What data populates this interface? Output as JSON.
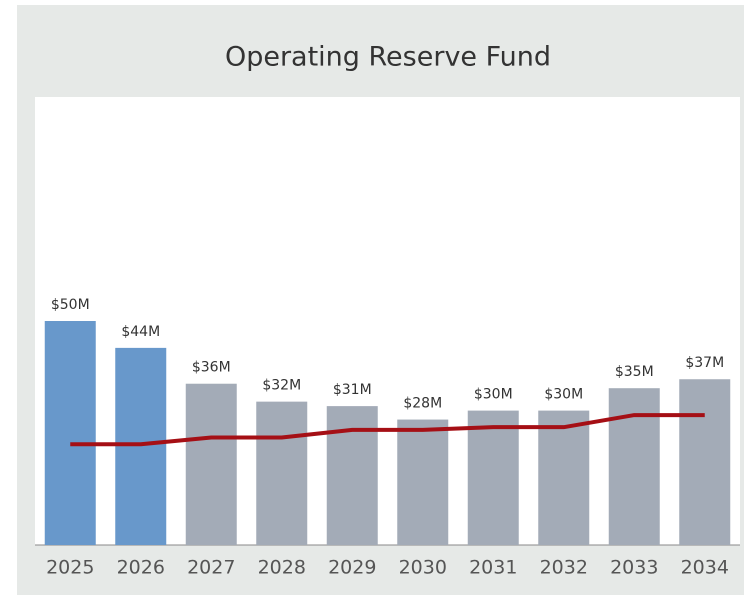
{
  "chart_data": {
    "type": "bar",
    "title": "Operating Reserve Fund",
    "categories": [
      "2025",
      "2026",
      "2027",
      "2028",
      "2029",
      "2030",
      "2031",
      "2032",
      "2033",
      "2034"
    ],
    "series": [
      {
        "values": [
          50,
          44,
          36,
          32,
          31,
          28,
          30,
          30,
          35,
          37
        ],
        "value_labels": [
          "$50M",
          "$44M",
          "$36M",
          "$32M",
          "$31M",
          "$28M",
          "$30M",
          "$30M",
          "$35M",
          "$37M"
        ],
        "colors": [
          "#6898cb",
          "#6898cb",
          "#a3abb7",
          "#a3abb7",
          "#a3abb7",
          "#a3abb7",
          "#a3abb7",
          "#a3abb7",
          "#a3abb7",
          "#a3abb7"
        ]
      },
      {
        "type": "line",
        "color": "#a50f15",
        "values": [
          22.5,
          22.5,
          24,
          24,
          25.7,
          25.7,
          26.3,
          26.3,
          29,
          29
        ]
      }
    ],
    "ylim": [
      0,
      100
    ]
  }
}
